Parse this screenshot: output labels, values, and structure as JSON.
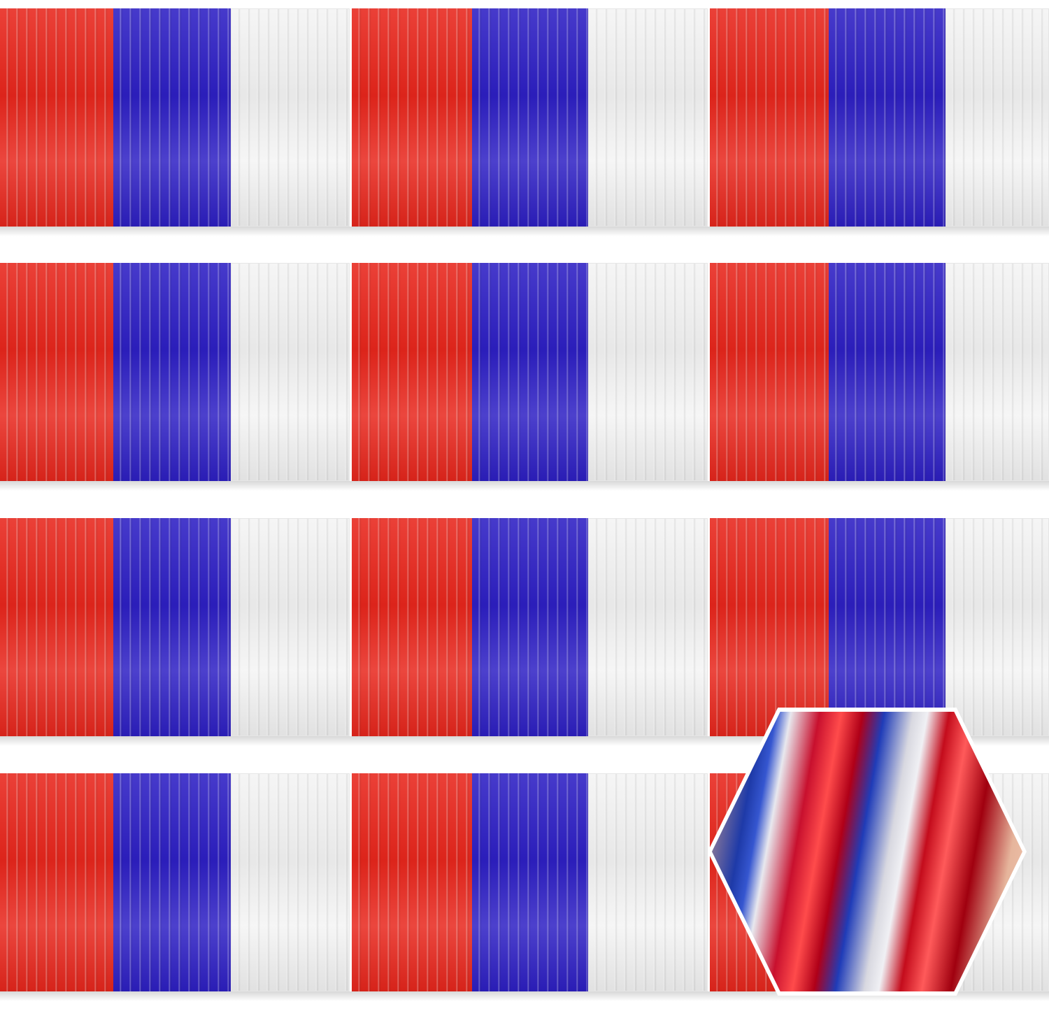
{
  "image": {
    "subject": "tinsel-fringe-pennant-strings",
    "rows": 4,
    "panel_pattern": [
      "red",
      "blue",
      "white",
      "red",
      "blue",
      "white",
      "red",
      "blue",
      "white"
    ],
    "colors": {
      "red": "#e8261c",
      "blue": "#2d1fc4",
      "white": "#f4f4f4",
      "background": "#ffffff"
    },
    "inset": {
      "shape": "hexagon",
      "subject": "closeup-of-red-blue-white-foil-strips"
    }
  }
}
